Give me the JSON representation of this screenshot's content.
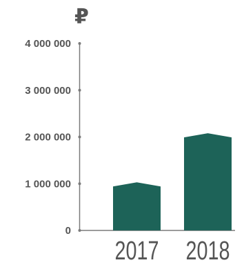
{
  "chart_data": {
    "type": "bar",
    "unit_symbol": "₽",
    "categories": [
      "2017",
      "2018"
    ],
    "values": [
      1000000,
      2050000
    ],
    "ylim": [
      0,
      4000000
    ],
    "y_ticks": [
      0,
      1000000,
      2000000,
      3000000,
      4000000
    ],
    "y_tick_labels": [
      "0",
      "1 000 000",
      "2 000 000",
      "3 000 000",
      "4 000 000"
    ],
    "grid": false,
    "colors": {
      "bar": "#1d6358",
      "axis": "#7a7a7a",
      "text": "#555555"
    }
  }
}
